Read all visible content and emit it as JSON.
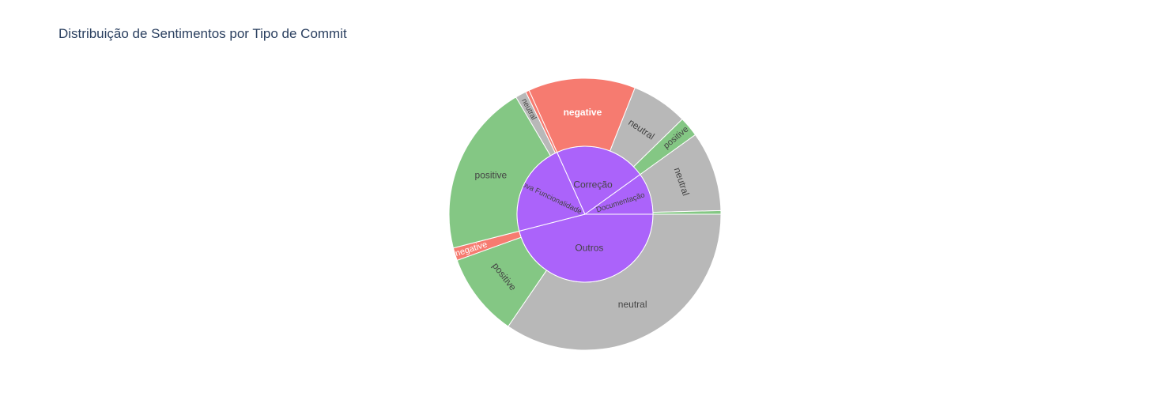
{
  "title": "Distribuição de Sentimentos por Tipo de Commit",
  "chart_data": {
    "type": "sunburst",
    "title": "Distribuição de Sentimentos por Tipo de Commit",
    "colors": {
      "category": "#AB63FA",
      "neutral": "#B8B8B8",
      "positive": "#84C784",
      "negative": "#F67B70"
    },
    "categories": [
      {
        "name": "Outros",
        "children": [
          {
            "name": "neutral",
            "value": 160
          },
          {
            "name": "positive",
            "value": 46
          },
          {
            "name": "negative",
            "value": 7
          }
        ]
      },
      {
        "name": "Nova Funcionalidade",
        "children": [
          {
            "name": "positive",
            "value": 95
          },
          {
            "name": "neutral",
            "value": 6
          },
          {
            "name": "negative",
            "value": 2
          }
        ]
      },
      {
        "name": "Correção",
        "children": [
          {
            "name": "negative",
            "value": 59
          },
          {
            "name": "neutral",
            "value": 31
          },
          {
            "name": "positive",
            "value": 11
          }
        ]
      },
      {
        "name": "Documentação",
        "children": [
          {
            "name": "neutral",
            "value": 44
          },
          {
            "name": "positive",
            "value": 2
          }
        ]
      }
    ]
  }
}
